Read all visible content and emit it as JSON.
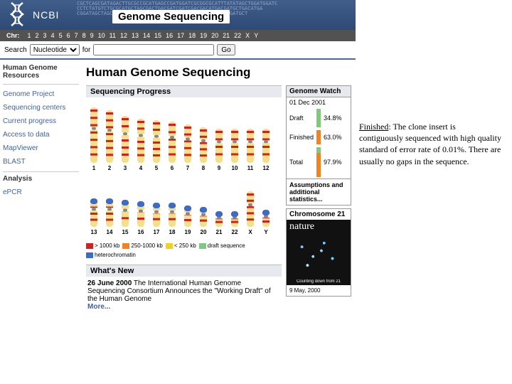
{
  "banner": {
    "site": "NCBI",
    "title": "Genome Sequencing",
    "dna_seq": "CGCTCAGCGATAGACTTGCGCCGCATGAGCCGATGGATCGCGGCGCATTTATATAGCTGGATGGATC\nCCTCTATGTCTGCGCATGCTAGCGACTGACGATCGATCGACGACATGACGATGCTGACATGA\nCGGATAGCTAGCTAGCGATGCGATGCTAGCATCGTAGCTAGCTAGCTGATCGATGCT"
  },
  "chrnav": {
    "label": "Chr:",
    "items": [
      "1",
      "2",
      "3",
      "4",
      "5",
      "6",
      "7",
      "8",
      "9",
      "10",
      "11",
      "12",
      "13",
      "14",
      "15",
      "16",
      "17",
      "18",
      "19",
      "20",
      "21",
      "22",
      "X",
      "Y"
    ]
  },
  "search": {
    "label": "Search",
    "dropdown": "Nucleotide",
    "for": "for",
    "go": "Go"
  },
  "sidebar": {
    "heading": "Human Genome Resources",
    "links": [
      "Genome Project",
      "Sequencing centers",
      "Current progress",
      "Access to data",
      "MapViewer",
      "BLAST"
    ],
    "heading2": "Analysis",
    "links2": [
      "ePCR"
    ]
  },
  "main": {
    "h1": "Human Genome Sequencing",
    "progress_hd": "Sequencing Progress",
    "watch": {
      "title": "Genome Watch",
      "date": "01 Dec 2001",
      "rows": [
        {
          "label": "Draft",
          "pct": "34.8%",
          "cls": "draft"
        },
        {
          "label": "Finished",
          "pct": "63.0%",
          "cls": "fin"
        },
        {
          "label": "Total",
          "pct": "97.9%",
          "cls": "tot"
        }
      ],
      "more": "Assumptions and additional statistics..."
    },
    "legend": [
      {
        "c": "#d31f1f",
        "t": "> 1000 kb"
      },
      {
        "c": "#f58220",
        "t": "250-1000 kb"
      },
      {
        "c": "#f2d21f",
        "t": "< 250 kb"
      },
      {
        "c": "#7fc97f",
        "t": "draft sequence"
      },
      {
        "c": "#3a6cc9",
        "t": "heterochromatin"
      }
    ],
    "whatsnew_hd": "What's New",
    "whatsnew": "26 June 2000 The International Human Genome Sequencing Consortium Announces the \"Working Draft\" of the Human Genome",
    "more": "More...",
    "nature": {
      "hd": "Chromosome 21",
      "title": "nature",
      "cap": "Counting down from 21",
      "date": "9 May, 2000"
    }
  },
  "annotation": {
    "term": "Finished",
    "text": ": The clone insert is contiguously sequenced with high quality standard of error rate of 0.01%. There are usually no gaps in the sequence."
  },
  "chromosomes": {
    "row1": [
      "1",
      "2",
      "3",
      "4",
      "5",
      "6",
      "7",
      "8",
      "9",
      "10",
      "11",
      "12"
    ],
    "row2": [
      "13",
      "14",
      "15",
      "16",
      "17",
      "18",
      "19",
      "20",
      "21",
      "22",
      "X",
      "Y"
    ],
    "heights1": [
      78,
      74,
      66,
      62,
      60,
      58,
      54,
      50,
      48,
      48,
      48,
      48
    ],
    "heights2": [
      40,
      40,
      38,
      36,
      34,
      34,
      30,
      28,
      22,
      22,
      50,
      24
    ],
    "band_color": "#d31f1f",
    "bg_color": "#f5e08a",
    "het_color": "#3a6cc9",
    "cent_color": "#888"
  }
}
